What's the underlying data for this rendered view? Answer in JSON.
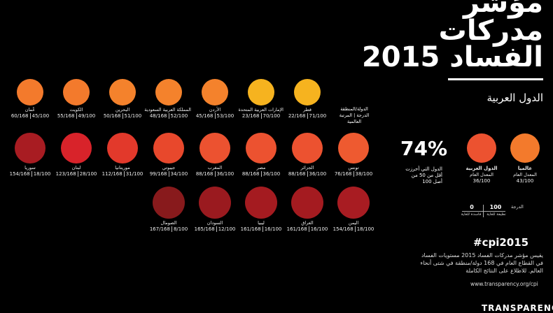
{
  "title_lines": [
    "مؤشر",
    "مدركات",
    "الفساد 2015"
  ],
  "subtitle": "الدول العربية",
  "column_header": [
    "الدولة/المنطقة",
    "الدرجة | المرتبة",
    "العالمية"
  ],
  "rank_total": "/168",
  "score_total": "/100",
  "rows": [
    [
      {
        "name": "قطر",
        "rank": 22,
        "score": 71,
        "color": "#f6b31f"
      },
      {
        "name": "الإمارات العربية المتحدة",
        "rank": 23,
        "score": 70,
        "color": "#f6b31f"
      },
      {
        "name": "الأردن",
        "rank": 45,
        "score": 53,
        "color": "#f4822c"
      },
      {
        "name": "المملكة العربية السعودية",
        "rank": 48,
        "score": 52,
        "color": "#f4822c"
      },
      {
        "name": "البحرين",
        "rank": 50,
        "score": 51,
        "color": "#f4822c"
      },
      {
        "name": "الكويت",
        "rank": 55,
        "score": 49,
        "color": "#f37a2c"
      },
      {
        "name": "عُمان",
        "rank": 60,
        "score": 45,
        "color": "#f37a2c"
      }
    ],
    [
      {
        "name": "تونس",
        "rank": 76,
        "score": 38,
        "color": "#ee5a30"
      },
      {
        "name": "الجزائر",
        "rank": 88,
        "score": 36,
        "color": "#ec5230"
      },
      {
        "name": "مصر",
        "rank": 88,
        "score": 36,
        "color": "#ec5230"
      },
      {
        "name": "المغرب",
        "rank": 88,
        "score": 36,
        "color": "#ec5230"
      },
      {
        "name": "جيبوتي",
        "rank": 99,
        "score": 34,
        "color": "#e8482c"
      },
      {
        "name": "موريتانيا",
        "rank": 112,
        "score": 31,
        "color": "#e2392b"
      },
      {
        "name": "لبنان",
        "rank": 123,
        "score": 28,
        "color": "#d8232a"
      },
      {
        "name": "سوريا",
        "rank": 154,
        "score": 18,
        "color": "#a81c22"
      }
    ],
    [
      {
        "name": "اليمن",
        "rank": 154,
        "score": 18,
        "color": "#a81c22"
      },
      {
        "name": "العراق",
        "rank": 161,
        "score": 16,
        "color": "#a41b20"
      },
      {
        "name": "ليبيا",
        "rank": 161,
        "score": 16,
        "color": "#a41b20"
      },
      {
        "name": "السودان",
        "rank": 165,
        "score": 12,
        "color": "#9a1a1f"
      },
      {
        "name": "الصومال",
        "rank": 167,
        "score": 8,
        "color": "#881a1c"
      }
    ]
  ],
  "averages": [
    {
      "label": "عالميا",
      "sub": "المعدل العام",
      "score": 43,
      "color": "#f37a2c"
    },
    {
      "label": "الدول العربية",
      "sub": "المعدل العام",
      "score": 36,
      "color": "#ec5230"
    }
  ],
  "share": {
    "value": "74%",
    "text": "الدول التي أحرزت أقل من 50 من أصل 100"
  },
  "scale": {
    "title": "الدرجة",
    "high": {
      "value": 100,
      "label": "نظيفة للغاية"
    },
    "low": {
      "value": 0,
      "label": "فاسدة للغاية"
    }
  },
  "hashtag": "#cpi2015",
  "description": "يقيس مؤشر مدركات الفساد 2015 مستويات الفساد في القطاع العام في 168 دولة/منطقة في شتى أنحاء العالم. للاطلاع على النتائج الكاملة",
  "url": "www.transparency.org/cpi",
  "logo": "TRANSPARENCY"
}
